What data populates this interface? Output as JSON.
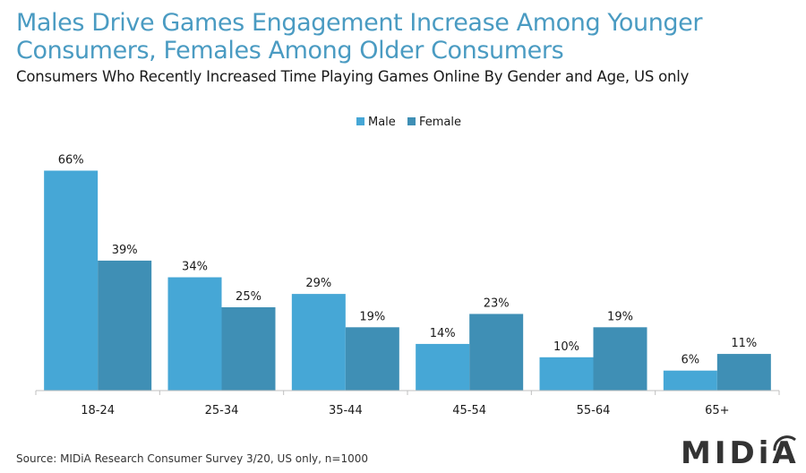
{
  "header": {
    "title": "Males Drive Games Engagement Increase Among Younger Consumers, Females Among Older Consumers",
    "subtitle": "Consumers Who Recently Increased Time Playing Games Online By Gender and Age, US only"
  },
  "footer": {
    "source": "Source: MIDiA Research Consumer Survey 3/20, US only, n=1000",
    "logo_text": "MIDiA"
  },
  "chart_data": {
    "type": "bar",
    "title": "",
    "xlabel": "",
    "ylabel": "",
    "categories": [
      "18-24",
      "25-34",
      "35-44",
      "45-54",
      "55-64",
      "65+"
    ],
    "series": [
      {
        "name": "Male",
        "values": [
          66,
          34,
          29,
          14,
          10,
          6
        ],
        "color": "#46a7d6"
      },
      {
        "name": "Female",
        "values": [
          39,
          25,
          19,
          23,
          19,
          11
        ],
        "color": "#3f8fb5"
      }
    ],
    "value_suffix": "%",
    "ylim": [
      0,
      70
    ],
    "grid": false,
    "legend": "top-center"
  }
}
